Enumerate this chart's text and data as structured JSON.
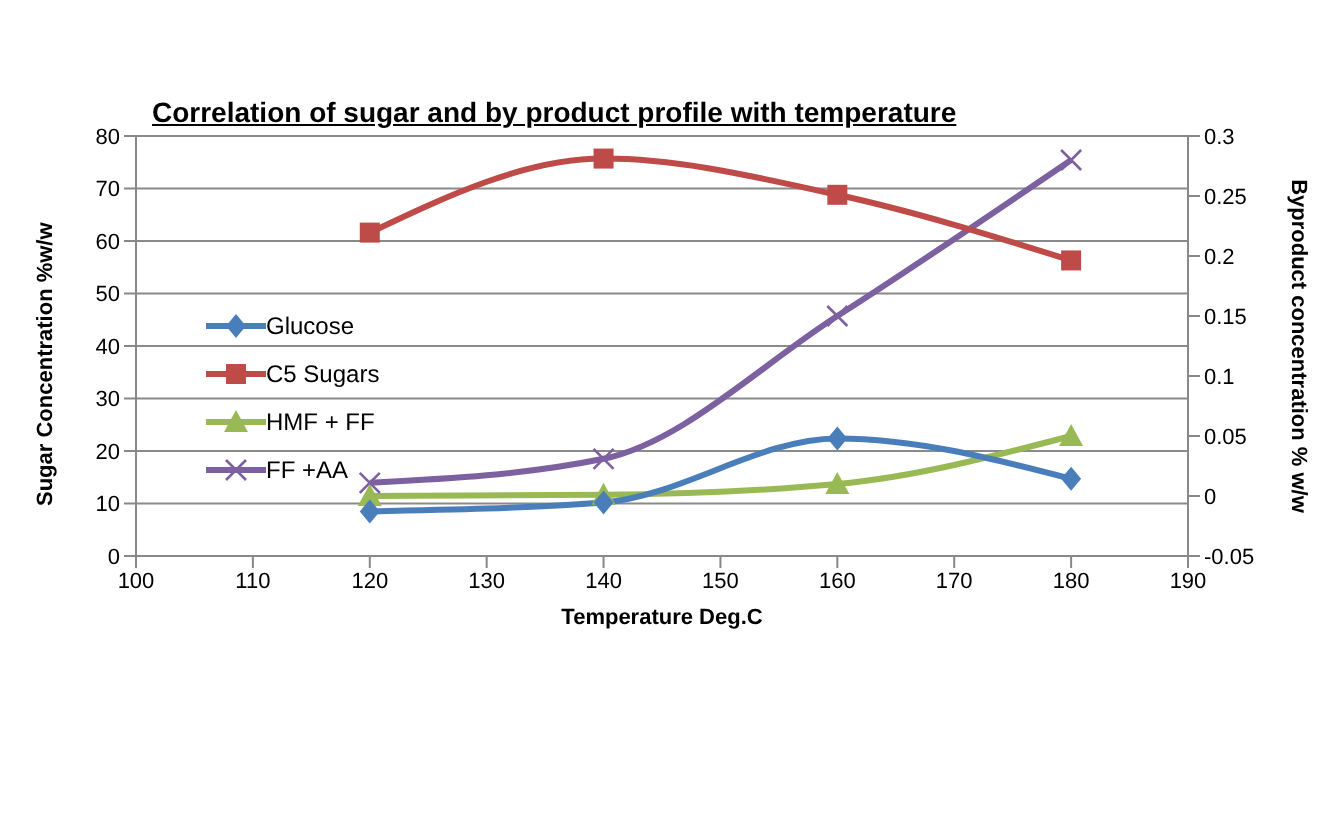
{
  "chart_data": {
    "type": "line",
    "title": "Correlation of sugar and by product profile with temperature",
    "xlabel": "Temperature Deg.C",
    "ylabel": "Sugar Concentration %w/w",
    "y2label": "Byproduct concentration % w/w",
    "x": [
      120,
      140,
      160,
      180
    ],
    "series": [
      {
        "name": "Glucose",
        "color": "#4a7ebb",
        "marker": "diamond",
        "values": [
          8.5,
          10.2,
          22.4,
          14.7
        ]
      },
      {
        "name": "C5 Sugars",
        "color": "#be4b48",
        "marker": "square",
        "values": [
          61.6,
          75.7,
          68.8,
          56.3
        ]
      },
      {
        "name": "HMF + FF",
        "color": "#98b954",
        "marker": "triangle",
        "axis": "y2",
        "values": [
          0,
          0.001,
          0.01,
          0.05
        ]
      },
      {
        "name": "FF +AA",
        "color": "#7d60a0",
        "marker": "cross",
        "axis": "y2",
        "values": [
          0.011,
          0.031,
          0.15,
          0.28
        ]
      }
    ],
    "xlim": [
      100,
      190
    ],
    "xticks": [
      100,
      110,
      120,
      130,
      140,
      150,
      160,
      170,
      180,
      190
    ],
    "ylim": [
      0,
      80
    ],
    "yticks": [
      0,
      10,
      20,
      30,
      40,
      50,
      60,
      70,
      80
    ],
    "y2lim": [
      -0.05,
      0.3
    ],
    "y2ticks": [
      -0.05,
      0,
      0.05,
      0.1,
      0.15,
      0.2,
      0.25,
      0.3
    ],
    "grid": "y",
    "legend": "left",
    "line_style": "solid"
  }
}
